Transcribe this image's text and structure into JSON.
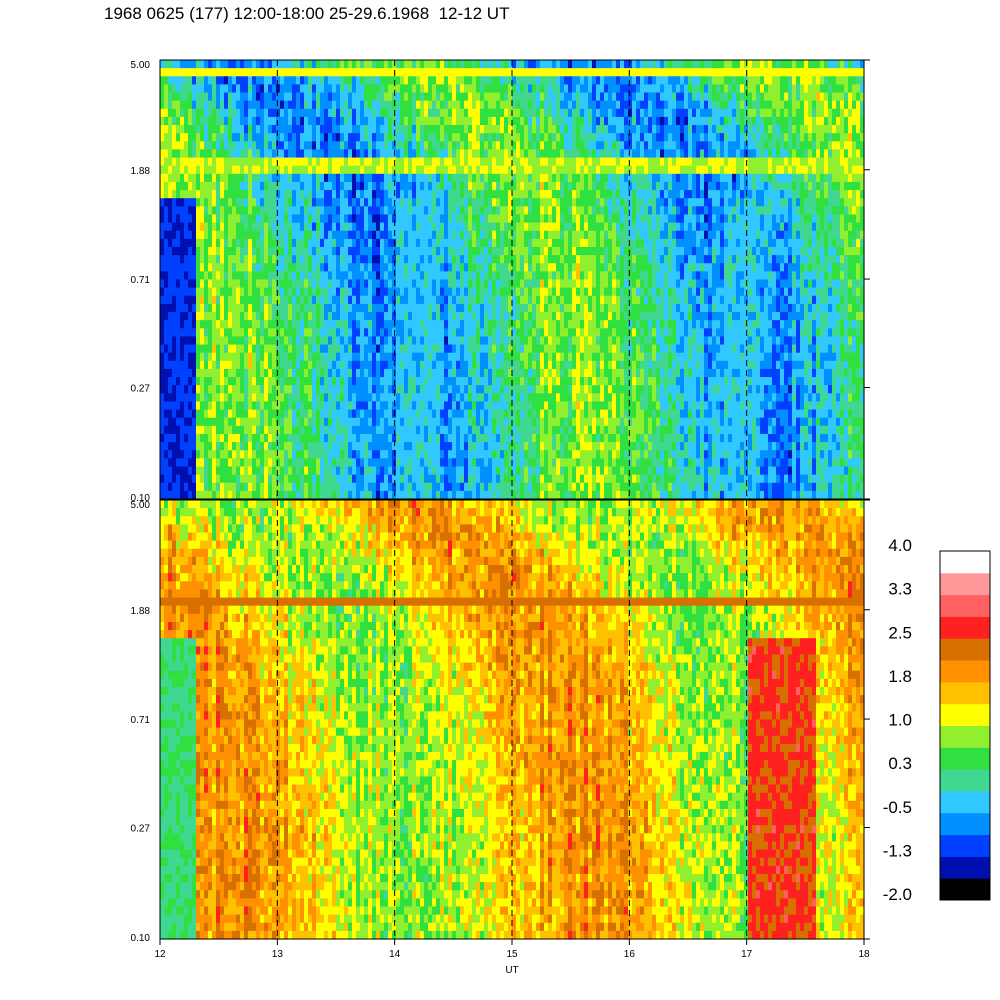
{
  "title": "1968 0625 (177) 12:00-18:00 25-29.6.1968  12-12 UT",
  "chart_data": {
    "type": "heatmap",
    "title": "1968 0625 (177) 12:00-18:00 25-29.6.1968  12-12 UT",
    "xlabel": "UT",
    "x_ticks": [
      "12",
      "13",
      "14",
      "15",
      "16",
      "17",
      "18"
    ],
    "xlim": [
      12,
      18
    ],
    "y_scale": "log",
    "ylim": [
      0.1,
      5.0
    ],
    "panels": [
      {
        "y_ticks": [
          "5.00",
          "1.88",
          "0.71",
          "0.27",
          "0.10"
        ],
        "dominant_level_range": [
          -1.0,
          1.2
        ],
        "band_frequency": 1.95,
        "band_level": 1.0,
        "top_band_frequency": 4.6,
        "note_regions": [
          {
            "x": [
              12.0,
              12.3
            ],
            "level": -1.2
          },
          {
            "x": [
              14.0,
              14.4
            ],
            "level": -0.3
          },
          {
            "x": [
              16.8,
              17.1
            ],
            "level": -0.3
          }
        ]
      },
      {
        "y_ticks": [
          "5.00",
          "1.88",
          "0.71",
          "0.27",
          "0.10"
        ],
        "dominant_level_range": [
          0.6,
          2.3
        ],
        "band_frequency": 2.0,
        "band_level": 2.3,
        "note_regions": [
          {
            "x": [
              12.0,
              12.3
            ],
            "level": 0.2
          },
          {
            "x": [
              17.0,
              17.6
            ],
            "level": 2.6
          }
        ]
      }
    ],
    "colorbar": {
      "labels": [
        "4.0",
        "3.3",
        "2.5",
        "1.8",
        "1.0",
        "0.3",
        "-0.5",
        "-1.3",
        "-2.0"
      ],
      "colors": [
        "#000000",
        "#0010b0",
        "#0040ff",
        "#0090ff",
        "#30c8ff",
        "#40d890",
        "#30e040",
        "#90f030",
        "#ffff00",
        "#ffc000",
        "#ff9000",
        "#d87000",
        "#ff2020",
        "#ff6060",
        "#ff9898",
        "#ffffff"
      ]
    },
    "vertical_markers": [
      13,
      14,
      15,
      16,
      17
    ]
  }
}
